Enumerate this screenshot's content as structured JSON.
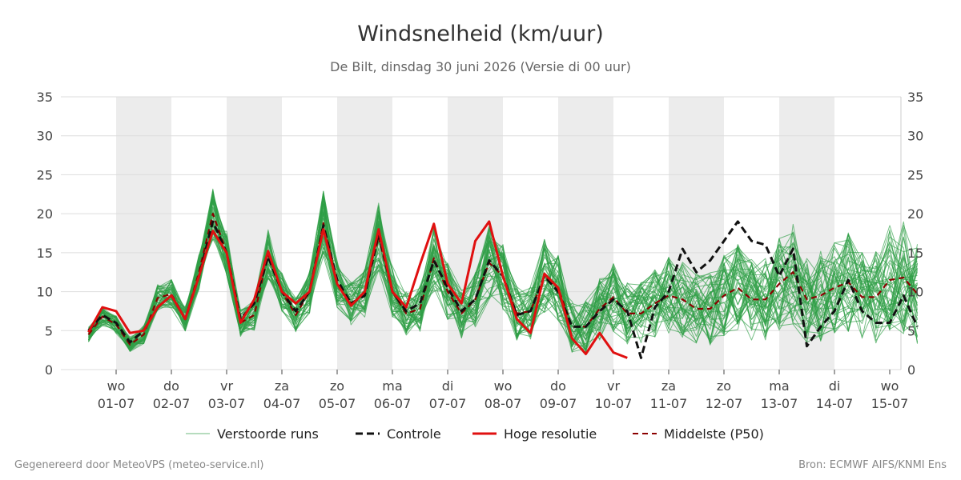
{
  "chart_data": {
    "type": "line",
    "title": "Windsnelheid (km/uur)",
    "subtitle": "De Bilt, dinsdag 30 juni 2026 (Versie di 00 uur)",
    "ylim": [
      0,
      35
    ],
    "yticks": [
      0,
      5,
      10,
      15,
      20,
      25,
      30,
      35
    ],
    "xlim": [
      0,
      14.75
    ],
    "x_start_offset": 0.5,
    "step": 0.25,
    "day_ticks": [
      {
        "x": 1,
        "day": "wo",
        "date": "01-07"
      },
      {
        "x": 2,
        "day": "do",
        "date": "02-07"
      },
      {
        "x": 3,
        "day": "vr",
        "date": "03-07"
      },
      {
        "x": 4,
        "day": "za",
        "date": "04-07"
      },
      {
        "x": 5,
        "day": "zo",
        "date": "05-07"
      },
      {
        "x": 6,
        "day": "ma",
        "date": "06-07"
      },
      {
        "x": 7,
        "day": "di",
        "date": "07-07"
      },
      {
        "x": 8,
        "day": "wo",
        "date": "08-07"
      },
      {
        "x": 9,
        "day": "do",
        "date": "09-07"
      },
      {
        "x": 10,
        "day": "vr",
        "date": "10-07"
      },
      {
        "x": 11,
        "day": "za",
        "date": "11-07"
      },
      {
        "x": 12,
        "day": "zo",
        "date": "12-07"
      },
      {
        "x": 13,
        "day": "ma",
        "date": "13-07"
      },
      {
        "x": 14,
        "day": "di",
        "date": "14-07"
      },
      {
        "x": 15,
        "day": "wo",
        "date": "15-07"
      }
    ],
    "shaded_days": [
      [
        1,
        2
      ],
      [
        3,
        4
      ],
      [
        5,
        6
      ],
      [
        7,
        8
      ],
      [
        9,
        10
      ],
      [
        11,
        12
      ],
      [
        13,
        14
      ]
    ],
    "colors": {
      "ensemble": "#2e9e45",
      "control": "#111111",
      "high_res": "#e01010",
      "median": "#8b0000",
      "shade": "#ececec",
      "grid": "#dddddd"
    },
    "ensemble_members": 50,
    "control": [
      5.0,
      7.0,
      6.0,
      3.5,
      5.0,
      8.0,
      9.5,
      6.5,
      12.0,
      19.0,
      15.0,
      6.5,
      8.5,
      14.5,
      10.0,
      7.5,
      10.0,
      18.5,
      11.5,
      8.5,
      9.5,
      17.5,
      10.0,
      7.5,
      8.5,
      14.0,
      10.5,
      7.5,
      9.0,
      14.0,
      12.0,
      7.0,
      7.5,
      12.0,
      10.0,
      5.5,
      5.5,
      7.5,
      9.0,
      7.5,
      1.5,
      8.0,
      10.0,
      15.5,
      12.5,
      14.0,
      16.5,
      19.0,
      16.5,
      16.0,
      12.0,
      15.5,
      3.0,
      5.5,
      7.5,
      11.5,
      7.5,
      6.0,
      6.0,
      9.5,
      5.5
    ],
    "high_res": [
      4.8,
      8.0,
      7.5,
      4.7,
      5.0,
      8.0,
      9.5,
      6.5,
      12.0,
      17.8,
      15.0,
      6.0,
      9.0,
      15.2,
      10.0,
      8.5,
      10.0,
      18.0,
      11.0,
      8.2,
      10.0,
      18.0,
      10.0,
      8.0,
      13.5,
      18.7,
      11.0,
      8.5,
      16.5,
      19.0,
      12.0,
      6.5,
      4.7,
      12.3,
      10.5,
      4.0,
      2.0,
      4.7,
      2.2,
      1.5
    ],
    "median": [
      4.5,
      6.8,
      5.8,
      3.2,
      4.5,
      9.2,
      9.7,
      6.5,
      12.5,
      20.0,
      15.0,
      6.0,
      7.0,
      14.8,
      10.0,
      7.0,
      10.0,
      18.8,
      11.0,
      8.5,
      9.8,
      17.0,
      10.0,
      7.2,
      7.8,
      14.3,
      10.0,
      7.2,
      9.0,
      13.7,
      12.0,
      7.2,
      7.5,
      12.0,
      10.5,
      5.5,
      5.5,
      7.8,
      9.3,
      7.2,
      7.2,
      8.5,
      9.5,
      9.0,
      7.8,
      7.8,
      9.5,
      10.5,
      9.0,
      9.0,
      11.0,
      12.5,
      9.0,
      9.5,
      10.5,
      11.2,
      9.3,
      9.3,
      11.5,
      11.8,
      9.7
    ],
    "legend": [
      {
        "label": "Verstoorde runs",
        "style": "thin"
      },
      {
        "label": "Controle",
        "style": "dash-black"
      },
      {
        "label": "Hoge resolutie",
        "style": "solid-red"
      },
      {
        "label": "Middelste (P50)",
        "style": "dash-red"
      }
    ],
    "legend_position": "bottom"
  },
  "footer": {
    "left": "Gegenereerd door MeteoVPS (meteo-service.nl)",
    "right": "Bron: ECMWF AIFS/KNMI Ens"
  }
}
